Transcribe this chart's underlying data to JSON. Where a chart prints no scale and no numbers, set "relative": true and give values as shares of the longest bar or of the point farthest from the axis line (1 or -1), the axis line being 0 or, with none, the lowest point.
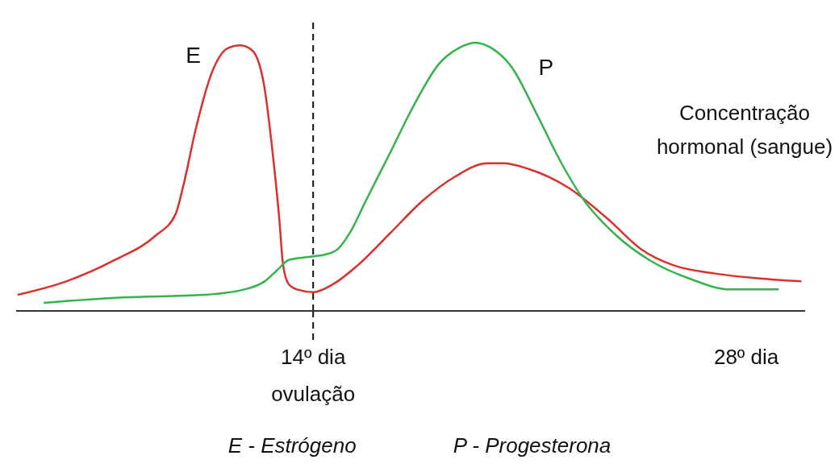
{
  "chart_data": {
    "type": "line",
    "relative": true,
    "ylabel": "Concentração hormonal (sangue)",
    "xlim": [
      4.4,
      29.9
    ],
    "xticks": [
      {
        "value": 14,
        "label": "14º dia\novulação"
      },
      {
        "value": 28,
        "label": "28º dia"
      }
    ],
    "grid": false,
    "legend": false,
    "marker": "none",
    "line_style": "solid",
    "ref_lines": [
      {
        "axis": "x",
        "value": 14,
        "color": "#111111",
        "line_style": "dashed"
      }
    ],
    "annotations": [
      "E - Estrógeno",
      "P - Progesterona"
    ],
    "series": [
      {
        "name": "E",
        "color": "#d9302c",
        "x": [
          4.45,
          6.02,
          7.59,
          8.9,
          9.55,
          9.81,
          10.21,
          10.73,
          11.25,
          11.64,
          12.04,
          12.43,
          12.69,
          12.9,
          13.03,
          13.21,
          13.48,
          14,
          14.65,
          15.44,
          16.49,
          17.53,
          18.58,
          19.63,
          20.15,
          20.94,
          22.24,
          23.55,
          24.6,
          25.65,
          26.95,
          28.52,
          29.78
        ],
        "values": [
          0.06,
          0.11,
          0.19,
          0.28,
          0.36,
          0.47,
          0.68,
          0.89,
          0.98,
          0.99,
          0.97,
          0.83,
          0.59,
          0.35,
          0.17,
          0.1,
          0.08,
          0.07,
          0.1,
          0.17,
          0.29,
          0.41,
          0.5,
          0.55,
          0.55,
          0.53,
          0.46,
          0.34,
          0.23,
          0.17,
          0.14,
          0.12,
          0.11
        ]
      },
      {
        "name": "P",
        "color": "#33b44a",
        "x": [
          5.29,
          7.85,
          10.47,
          11.78,
          12.43,
          12.82,
          13.21,
          13.74,
          14.39,
          14.79,
          15.18,
          15.7,
          16.49,
          17.27,
          18.06,
          18.71,
          19.23,
          19.76,
          20.41,
          21.2,
          21.98,
          22.77,
          23.81,
          24.86,
          26.17,
          27.48,
          29.05
        ],
        "values": [
          0.03,
          0.05,
          0.06,
          0.08,
          0.11,
          0.15,
          0.19,
          0.2,
          0.21,
          0.23,
          0.29,
          0.41,
          0.59,
          0.77,
          0.92,
          0.98,
          1,
          0.98,
          0.91,
          0.74,
          0.56,
          0.41,
          0.28,
          0.19,
          0.12,
          0.08,
          0.08
        ]
      }
    ]
  }
}
